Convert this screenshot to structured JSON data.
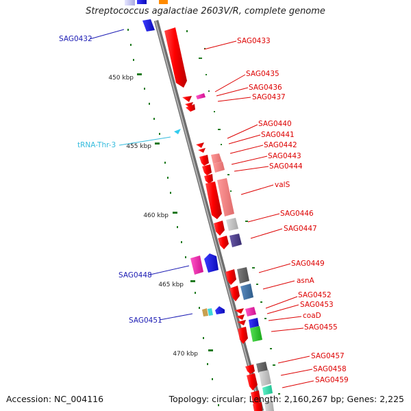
{
  "title": "Streptococcus agalactiae 2603V/R, complete genome",
  "footer": {
    "accession": "Accession: NC_004116",
    "summary": "Topology: circular; Length: 2,160,267 bp; Genes: 2,225"
  },
  "ticks": [
    "450 kbp",
    "455 kbp",
    "460 kbp",
    "465 kbp",
    "470 kbp"
  ],
  "colors": {
    "backbone": "#8c8c8c",
    "gene_plus": "#ff0000",
    "label_plus": "#dd0000",
    "label_minus": "#1a1ab3",
    "label_rna": "#33bbdd",
    "tick": "#1f7a1f"
  },
  "labels": {
    "SAG0432": "SAG0432",
    "SAG0433": "SAG0433",
    "SAG0435": "SAG0435",
    "SAG0436": "SAG0436",
    "SAG0437": "SAG0437",
    "tRNA-Thr-3": "tRNA-Thr-3",
    "SAG0440": "SAG0440",
    "SAG0441": "SAG0441",
    "SAG0442": "SAG0442",
    "SAG0443": "SAG0443",
    "SAG0444": "SAG0444",
    "valS": "valS",
    "SAG0446": "SAG0446",
    "SAG0447": "SAG0447",
    "SAG0448": "SAG0448",
    "SAG0449": "SAG0449",
    "asnA": "asnA",
    "SAG0451": "SAG0451",
    "SAG0452": "SAG0452",
    "SAG0453": "SAG0453",
    "coaD": "coaD",
    "SAG0455": "SAG0455",
    "SAG0457": "SAG0457",
    "SAG0458": "SAG0458",
    "SAG0459": "SAG0459"
  }
}
